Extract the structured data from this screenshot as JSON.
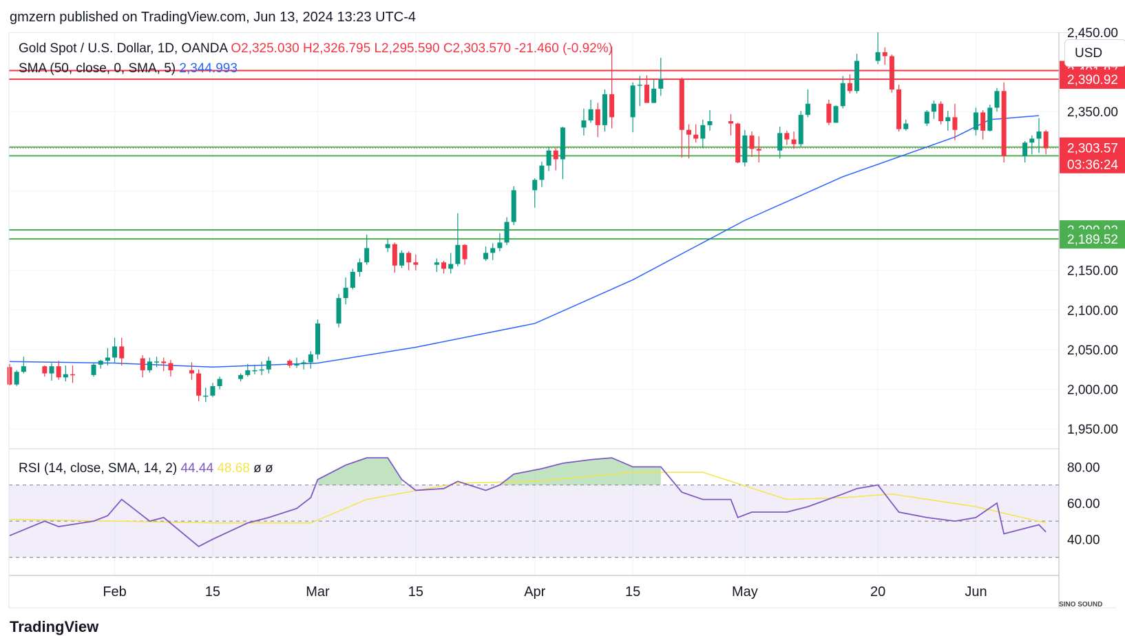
{
  "header": {
    "text": "gmzern published on TradingView.com, Jun 13, 2024 13:23 UTC-4"
  },
  "legend": {
    "symbol": "Gold Spot / U.S. Dollar, 1D, OANDA",
    "ohlc": "O2,325.030  H2,326.795  L2,295.590  C2,303.570  -21.460 (-0.92%)",
    "sma_label": "SMA (50, close, 0, SMA, 5)",
    "sma_value": "2,344.993"
  },
  "rsi_legend": {
    "label": "RSI (14, close, SMA, 14, 2)",
    "rsi_value": "44.44",
    "rsi_ma_value": "48.68",
    "extra": "ø  ø"
  },
  "currency": "USD",
  "footer": "TradingView",
  "watermark": "SINO SOUND",
  "colors": {
    "up": "#089981",
    "down": "#f23645",
    "sma": "#2962ff",
    "rsi": "#7e57c2",
    "rsi_ma": "#f5e44a",
    "res": "#f23645",
    "sup": "#4caf50"
  },
  "chart_data": {
    "type": "candlestick",
    "title": "Gold Spot / U.S. Dollar, 1D, OANDA",
    "ylim": [
      1925,
      2450
    ],
    "yticks": [
      1950,
      2000,
      2050,
      2100,
      2150,
      2350,
      2450
    ],
    "ytick_labels": [
      "1,950.00",
      "2,000.00",
      "2,050.00",
      "2,100.00",
      "2,150.00",
      "2,350.00",
      "2,450.00"
    ],
    "xtick_labels": [
      {
        "label": "Feb",
        "date": "2024-02-01"
      },
      {
        "label": "15",
        "date": "2024-02-15"
      },
      {
        "label": "Mar",
        "date": "2024-03-01"
      },
      {
        "label": "15",
        "date": "2024-03-15"
      },
      {
        "label": "Apr",
        "date": "2024-04-01"
      },
      {
        "label": "15",
        "date": "2024-04-15"
      },
      {
        "label": "May",
        "date": "2024-05-01"
      },
      {
        "label": "20",
        "date": "2024-05-20"
      },
      {
        "label": "Jun",
        "date": "2024-06-03"
      }
    ],
    "levels": [
      {
        "value": 2401.87,
        "label": "2,401.87",
        "kind": "resistance"
      },
      {
        "value": 2390.92,
        "label": "2,390.92",
        "kind": "resistance"
      },
      {
        "value": 2305.34,
        "label": "2,305.34",
        "kind": "support"
      },
      {
        "value": 2294.3,
        "label": "2,294.30",
        "kind": "support"
      },
      {
        "value": 2200.92,
        "label": "2,200.92",
        "kind": "support"
      },
      {
        "value": 2189.52,
        "label": "2,189.52",
        "kind": "support"
      }
    ],
    "last_price": {
      "value": 2303.57,
      "label": "2,303.57",
      "countdown": "03:36:24"
    },
    "candles": [
      [
        "2024-01-17",
        2028,
        2032,
        2005,
        2006
      ],
      [
        "2024-01-18",
        2006,
        2024,
        2004,
        2022
      ],
      [
        "2024-01-19",
        2022,
        2041,
        2020,
        2029
      ],
      [
        "2024-01-22",
        2029,
        2030,
        2016,
        2020
      ],
      [
        "2024-01-23",
        2020,
        2033,
        2011,
        2029
      ],
      [
        "2024-01-24",
        2029,
        2036,
        2012,
        2015
      ],
      [
        "2024-01-25",
        2015,
        2030,
        2010,
        2019
      ],
      [
        "2024-01-26",
        2019,
        2030,
        2008,
        2018
      ],
      [
        "2024-01-29",
        2018,
        2034,
        2016,
        2031
      ],
      [
        "2024-01-30",
        2031,
        2037,
        2026,
        2036
      ],
      [
        "2024-01-31",
        2036,
        2052,
        2030,
        2040
      ],
      [
        "2024-02-01",
        2040,
        2065,
        2033,
        2054
      ],
      [
        "2024-02-02",
        2054,
        2065,
        2030,
        2039
      ],
      [
        "2024-02-05",
        2039,
        2043,
        2015,
        2024
      ],
      [
        "2024-02-06",
        2024,
        2040,
        2021,
        2035
      ],
      [
        "2024-02-07",
        2035,
        2041,
        2028,
        2035
      ],
      [
        "2024-02-08",
        2035,
        2040,
        2023,
        2033
      ],
      [
        "2024-02-09",
        2033,
        2037,
        2016,
        2024
      ],
      [
        "2024-02-12",
        2024,
        2034,
        2012,
        2020
      ],
      [
        "2024-02-13",
        2020,
        2025,
        1985,
        1992
      ],
      [
        "2024-02-14",
        1992,
        2002,
        1984,
        1992
      ],
      [
        "2024-02-15",
        1992,
        2008,
        1990,
        2004
      ],
      [
        "2024-02-16",
        2004,
        2016,
        2000,
        2013
      ],
      [
        "2024-02-19",
        2013,
        2020,
        2010,
        2018
      ],
      [
        "2024-02-20",
        2018,
        2032,
        2016,
        2024
      ],
      [
        "2024-02-21",
        2024,
        2031,
        2019,
        2024
      ],
      [
        "2024-02-22",
        2024,
        2035,
        2018,
        2025
      ],
      [
        "2024-02-23",
        2025,
        2041,
        2020,
        2036
      ],
      [
        "2024-02-26",
        2036,
        2038,
        2027,
        2030
      ],
      [
        "2024-02-27",
        2030,
        2040,
        2027,
        2032
      ],
      [
        "2024-02-28",
        2032,
        2037,
        2025,
        2034
      ],
      [
        "2024-02-29",
        2034,
        2048,
        2026,
        2044
      ],
      [
        "2024-03-01",
        2044,
        2088,
        2038,
        2083
      ],
      [
        "2024-03-04",
        2083,
        2120,
        2078,
        2115
      ],
      [
        "2024-03-05",
        2115,
        2141,
        2107,
        2128
      ],
      [
        "2024-03-06",
        2128,
        2152,
        2126,
        2148
      ],
      [
        "2024-03-07",
        2148,
        2165,
        2142,
        2160
      ],
      [
        "2024-03-08",
        2160,
        2195,
        2157,
        2178
      ],
      [
        "2024-03-11",
        2178,
        2190,
        2173,
        2183
      ],
      [
        "2024-03-12",
        2183,
        2185,
        2147,
        2156
      ],
      [
        "2024-03-13",
        2156,
        2175,
        2153,
        2172
      ],
      [
        "2024-03-14",
        2172,
        2174,
        2150,
        2160
      ],
      [
        "2024-03-15",
        2160,
        2170,
        2150,
        2157
      ],
      [
        "2024-03-18",
        2157,
        2165,
        2148,
        2160
      ],
      [
        "2024-03-19",
        2160,
        2162,
        2146,
        2152
      ],
      [
        "2024-03-20",
        2152,
        2172,
        2146,
        2158
      ],
      [
        "2024-03-21",
        2158,
        2222,
        2155,
        2182
      ],
      [
        "2024-03-22",
        2182,
        2183,
        2157,
        2164
      ],
      [
        "2024-03-25",
        2164,
        2180,
        2162,
        2172
      ],
      [
        "2024-03-26",
        2172,
        2184,
        2163,
        2178
      ],
      [
        "2024-03-27",
        2178,
        2197,
        2174,
        2185
      ],
      [
        "2024-03-28",
        2185,
        2217,
        2182,
        2211
      ],
      [
        "2024-03-29",
        2211,
        2256,
        2207,
        2251
      ],
      [
        "2024-04-01",
        2251,
        2266,
        2229,
        2264
      ],
      [
        "2024-04-02",
        2264,
        2287,
        2255,
        2282
      ],
      [
        "2024-04-03",
        2282,
        2306,
        2275,
        2301
      ],
      [
        "2024-04-04",
        2301,
        2304,
        2276,
        2290
      ],
      [
        "2024-04-05",
        2290,
        2331,
        2265,
        2330
      ],
      [
        "2024-04-08",
        2330,
        2354,
        2320,
        2339
      ],
      [
        "2024-04-09",
        2339,
        2365,
        2336,
        2353
      ],
      [
        "2024-04-10",
        2353,
        2361,
        2318,
        2333
      ],
      [
        "2024-04-11",
        2333,
        2378,
        2325,
        2372
      ],
      [
        "2024-04-12",
        2372,
        2432,
        2329,
        2343
      ],
      [
        "2024-04-15",
        2343,
        2387,
        2324,
        2383
      ],
      [
        "2024-04-16",
        2383,
        2395,
        2357,
        2384
      ],
      [
        "2024-04-17",
        2384,
        2396,
        2364,
        2361
      ],
      [
        "2024-04-18",
        2361,
        2390,
        2361,
        2379
      ],
      [
        "2024-04-19",
        2379,
        2418,
        2370,
        2391
      ],
      [
        "2024-04-22",
        2391,
        2393,
        2292,
        2327
      ],
      [
        "2024-04-23",
        2327,
        2334,
        2291,
        2321
      ],
      [
        "2024-04-24",
        2321,
        2334,
        2311,
        2316
      ],
      [
        "2024-04-25",
        2316,
        2340,
        2304,
        2333
      ],
      [
        "2024-04-26",
        2333,
        2352,
        2326,
        2338
      ],
      [
        "2024-04-29",
        2338,
        2347,
        2320,
        2335
      ],
      [
        "2024-04-30",
        2335,
        2336,
        2285,
        2286
      ],
      [
        "2024-05-01",
        2286,
        2327,
        2281,
        2320
      ],
      [
        "2024-05-02",
        2320,
        2325,
        2293,
        2303
      ],
      [
        "2024-05-03",
        2303,
        2319,
        2286,
        2301
      ],
      [
        "2024-05-06",
        2301,
        2331,
        2291,
        2323
      ],
      [
        "2024-05-07",
        2323,
        2326,
        2308,
        2315
      ],
      [
        "2024-05-08",
        2315,
        2325,
        2303,
        2309
      ],
      [
        "2024-05-09",
        2309,
        2351,
        2306,
        2346
      ],
      [
        "2024-05-10",
        2346,
        2378,
        2343,
        2360
      ],
      [
        "2024-05-13",
        2360,
        2365,
        2333,
        2336
      ],
      [
        "2024-05-14",
        2336,
        2358,
        2336,
        2357
      ],
      [
        "2024-05-15",
        2357,
        2395,
        2354,
        2386
      ],
      [
        "2024-05-16",
        2386,
        2397,
        2373,
        2376
      ],
      [
        "2024-05-17",
        2376,
        2423,
        2373,
        2414
      ],
      [
        "2024-05-20",
        2414,
        2450,
        2410,
        2425
      ],
      [
        "2024-05-21",
        2425,
        2431,
        2409,
        2420
      ],
      [
        "2024-05-22",
        2420,
        2422,
        2374,
        2378
      ],
      [
        "2024-05-23",
        2378,
        2384,
        2325,
        2328
      ],
      [
        "2024-05-24",
        2328,
        2340,
        2326,
        2335
      ],
      [
        "2024-05-27",
        2335,
        2352,
        2332,
        2350
      ],
      [
        "2024-05-28",
        2350,
        2364,
        2341,
        2360
      ],
      [
        "2024-05-29",
        2360,
        2363,
        2334,
        2338
      ],
      [
        "2024-05-30",
        2338,
        2351,
        2326,
        2343
      ],
      [
        "2024-05-31",
        2343,
        2360,
        2314,
        2327
      ],
      [
        "2024-06-03",
        2327,
        2355,
        2320,
        2349
      ],
      [
        "2024-06-04",
        2349,
        2352,
        2315,
        2326
      ],
      [
        "2024-06-05",
        2326,
        2359,
        2325,
        2355
      ],
      [
        "2024-06-06",
        2355,
        2380,
        2350,
        2376
      ],
      [
        "2024-06-07",
        2376,
        2387,
        2286,
        2294
      ],
      [
        "2024-06-10",
        2294,
        2313,
        2286,
        2311
      ],
      [
        "2024-06-11",
        2311,
        2320,
        2296,
        2316
      ],
      [
        "2024-06-12",
        2316,
        2342,
        2298,
        2325
      ],
      [
        "2024-06-13",
        2325,
        2327,
        2296,
        2304
      ]
    ],
    "sma": [
      [
        "2024-01-17",
        2035
      ],
      [
        "2024-02-01",
        2033
      ],
      [
        "2024-02-15",
        2028
      ],
      [
        "2024-03-01",
        2033
      ],
      [
        "2024-03-15",
        2053
      ],
      [
        "2024-04-01",
        2083
      ],
      [
        "2024-04-15",
        2138
      ],
      [
        "2024-05-01",
        2213
      ],
      [
        "2024-05-15",
        2268
      ],
      [
        "2024-05-31",
        2318
      ],
      [
        "2024-06-05",
        2340
      ],
      [
        "2024-06-12",
        2345
      ]
    ],
    "rsi": {
      "ylim": [
        20,
        90
      ],
      "yticks": [
        40,
        60,
        80
      ],
      "ytick_labels": [
        "40.00",
        "60.00",
        "80.00"
      ],
      "band": [
        30,
        70
      ],
      "mid": 50,
      "rsi": [
        [
          "2024-01-17",
          42
        ],
        [
          "2024-01-22",
          50
        ],
        [
          "2024-01-24",
          47
        ],
        [
          "2024-01-29",
          50
        ],
        [
          "2024-01-31",
          53
        ],
        [
          "2024-02-02",
          62
        ],
        [
          "2024-02-06",
          50
        ],
        [
          "2024-02-08",
          52
        ],
        [
          "2024-02-13",
          36
        ],
        [
          "2024-02-15",
          40
        ],
        [
          "2024-02-20",
          49
        ],
        [
          "2024-02-23",
          52
        ],
        [
          "2024-02-27",
          57
        ],
        [
          "2024-02-29",
          63
        ],
        [
          "2024-03-01",
          73
        ],
        [
          "2024-03-05",
          81
        ],
        [
          "2024-03-08",
          85
        ],
        [
          "2024-03-11",
          85
        ],
        [
          "2024-03-13",
          73
        ],
        [
          "2024-03-15",
          67
        ],
        [
          "2024-03-19",
          68
        ],
        [
          "2024-03-21",
          72
        ],
        [
          "2024-03-25",
          67
        ],
        [
          "2024-03-27",
          70
        ],
        [
          "2024-03-29",
          76
        ],
        [
          "2024-04-02",
          79
        ],
        [
          "2024-04-05",
          82
        ],
        [
          "2024-04-09",
          84
        ],
        [
          "2024-04-12",
          85
        ],
        [
          "2024-04-15",
          80
        ],
        [
          "2024-04-19",
          80
        ],
        [
          "2024-04-22",
          66
        ],
        [
          "2024-04-25",
          62
        ],
        [
          "2024-04-29",
          62
        ],
        [
          "2024-04-30",
          52
        ],
        [
          "2024-05-02",
          55
        ],
        [
          "2024-05-07",
          55
        ],
        [
          "2024-05-10",
          58
        ],
        [
          "2024-05-15",
          65
        ],
        [
          "2024-05-17",
          68
        ],
        [
          "2024-05-20",
          70
        ],
        [
          "2024-05-23",
          55
        ],
        [
          "2024-05-27",
          52
        ],
        [
          "2024-05-31",
          50
        ],
        [
          "2024-06-03",
          52
        ],
        [
          "2024-06-06",
          60
        ],
        [
          "2024-06-07",
          43
        ],
        [
          "2024-06-12",
          48
        ],
        [
          "2024-06-13",
          44
        ]
      ],
      "rsi_ma": [
        [
          "2024-01-17",
          51
        ],
        [
          "2024-02-01",
          50
        ],
        [
          "2024-02-15",
          49
        ],
        [
          "2024-02-29",
          49
        ],
        [
          "2024-03-08",
          62
        ],
        [
          "2024-03-21",
          71
        ],
        [
          "2024-04-01",
          72
        ],
        [
          "2024-04-15",
          77
        ],
        [
          "2024-04-25",
          77
        ],
        [
          "2024-05-07",
          62
        ],
        [
          "2024-05-15",
          63
        ],
        [
          "2024-05-22",
          65
        ],
        [
          "2024-06-03",
          58
        ],
        [
          "2024-06-13",
          49
        ]
      ]
    }
  }
}
